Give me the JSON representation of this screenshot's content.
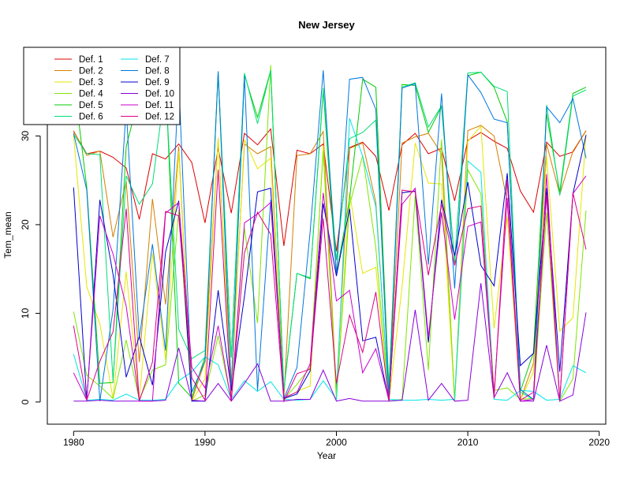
{
  "chart_data": {
    "type": "line",
    "title": "New Jersey",
    "xlabel": "Year",
    "ylabel": "Tem_mean",
    "xlim": [
      1978,
      2020.5
    ],
    "ylim": [
      -2.5,
      40
    ],
    "x_ticks": [
      1980,
      1990,
      2000,
      2010,
      2020
    ],
    "y_ticks": [
      0,
      10,
      20,
      30
    ],
    "grid": false,
    "legend_position": "top-left",
    "x": [
      1980,
      1981,
      1982,
      1983,
      1984,
      1985,
      1986,
      1987,
      1988,
      1989,
      1990,
      1991,
      1992,
      1993,
      1994,
      1995,
      1996,
      1997,
      1998,
      1999,
      2000,
      2001,
      2002,
      2003,
      2004,
      2005,
      2006,
      2007,
      2008,
      2009,
      2010,
      2011,
      2012,
      2013,
      2014,
      2015,
      2016,
      2017,
      2018,
      2019
    ],
    "series": [
      {
        "name": "Def. 1",
        "color": "#dd0000",
        "values": [
          30.5,
          28,
          28.3,
          27.6,
          26.4,
          20.6,
          28,
          27.4,
          29.1,
          27,
          20.2,
          28.6,
          21.3,
          30.3,
          29,
          30.8,
          17.6,
          28.4,
          28,
          29.1,
          17,
          28.7,
          29.3,
          27.7,
          21.6,
          29,
          30.3,
          28,
          28.6,
          22.7,
          29.5,
          30.4,
          29.4,
          28.6,
          23.8,
          21.4,
          29.3,
          27.7,
          28.2,
          30.6
        ]
      },
      {
        "name": "Def. 2",
        "color": "#d47f00",
        "values": [
          30.6,
          27.8,
          28.3,
          18.6,
          24.9,
          4.5,
          22.9,
          11,
          28.8,
          0.2,
          4.6,
          29.7,
          2.1,
          29.1,
          28,
          28.8,
          0.4,
          27.8,
          28,
          30.5,
          1.2,
          28.6,
          29.2,
          22.5,
          0.3,
          29.2,
          29.9,
          30.3,
          28,
          0.1,
          30.6,
          31.2,
          30,
          22.6,
          0.2,
          4.4,
          29.1,
          23.4,
          28.3,
          30.6
        ]
      },
      {
        "name": "Def. 3",
        "color": "#e6e600",
        "values": [
          30.1,
          13,
          8.8,
          0.4,
          14.7,
          0.3,
          16.8,
          4.8,
          28.3,
          0.1,
          2.6,
          29.8,
          0.8,
          29.6,
          26.3,
          27.5,
          0.3,
          1.2,
          1.8,
          28.9,
          0.4,
          23.6,
          14.5,
          15.2,
          0.1,
          13,
          29.2,
          24.7,
          24.6,
          0.1,
          29.4,
          31.1,
          8.3,
          20.9,
          0.2,
          3.4,
          27.7,
          8,
          9.5,
          30.2
        ]
      },
      {
        "name": "Def. 4",
        "color": "#7fe600",
        "values": [
          10.2,
          3,
          1.8,
          0.4,
          7,
          0.3,
          3.6,
          4.2,
          21.6,
          0.1,
          0.8,
          7.5,
          0.2,
          19.6,
          8.9,
          38,
          0.3,
          2,
          3.9,
          28.3,
          0.3,
          22.2,
          27.8,
          17.4,
          0.1,
          0.3,
          23.3,
          3.6,
          29.6,
          0.1,
          26.2,
          23.5,
          1.3,
          1.6,
          0.3,
          0.4,
          21.4,
          0.1,
          2.6,
          21.6
        ]
      },
      {
        "name": "Def. 5",
        "color": "#00cc00",
        "values": [
          36.5,
          24.2,
          2.1,
          2.2,
          28.8,
          34.6,
          35.3,
          36.5,
          2.1,
          0.5,
          5.1,
          37,
          5,
          36.9,
          32.1,
          37.4,
          1.3,
          14.5,
          13.9,
          35.1,
          14.3,
          22.9,
          36.4,
          35.5,
          1.5,
          35.8,
          35.7,
          30.4,
          33.3,
          15.7,
          36.8,
          37.2,
          35.5,
          31.6,
          1.2,
          5.6,
          32.5,
          23.7,
          34.8,
          35.5
        ]
      },
      {
        "name": "Def. 6",
        "color": "#00dd77",
        "values": [
          30.2,
          28,
          27.9,
          2.4,
          25.5,
          22.3,
          24.6,
          35.8,
          8.2,
          4.9,
          5.8,
          37.2,
          5.1,
          37.1,
          31.4,
          37.4,
          1.4,
          14.5,
          14,
          35.4,
          16,
          29.7,
          30.4,
          31.8,
          1.5,
          35.5,
          36,
          31,
          33.4,
          15.8,
          37.1,
          37.2,
          35.6,
          35,
          1.1,
          0.3,
          33.5,
          23.3,
          34.5,
          35.2
        ]
      },
      {
        "name": "Def. 7",
        "color": "#00e5e5",
        "values": [
          5.4,
          0.2,
          0.3,
          0.2,
          0.9,
          0.2,
          0.2,
          0.3,
          2.4,
          3.4,
          5.1,
          4.2,
          0.3,
          2.4,
          1.2,
          2.3,
          0.3,
          0.2,
          0.3,
          2.4,
          0.3,
          32,
          27.7,
          22,
          0.3,
          0.2,
          0.2,
          0.3,
          0.2,
          0.3,
          27.2,
          25.9,
          0.3,
          0.2,
          1.3,
          1.2,
          0.2,
          0.3,
          4.1,
          3.3
        ]
      },
      {
        "name": "Def. 8",
        "color": "#0077dd",
        "values": [
          30.3,
          23.9,
          0.1,
          10.4,
          33.1,
          7.2,
          17.8,
          5.8,
          36.3,
          1.1,
          4.6,
          37.3,
          1.3,
          36.8,
          1.3,
          22.8,
          0.4,
          3.9,
          19.2,
          37.4,
          14.4,
          36.4,
          36.6,
          33,
          0.3,
          35.4,
          35.9,
          15.5,
          34.8,
          12.8,
          36.9,
          34.9,
          31.9,
          31.5,
          1.4,
          0.3,
          33.3,
          31.5,
          34.2,
          27.5
        ]
      },
      {
        "name": "Def. 9",
        "color": "#0000cc",
        "values": [
          24.2,
          0.1,
          22.8,
          14.4,
          2.8,
          7.4,
          1.9,
          16.9,
          22.7,
          0.1,
          0.1,
          12.6,
          1.3,
          11.9,
          23.7,
          24.1,
          0.4,
          0.9,
          3.5,
          22.4,
          14.2,
          21.8,
          6.9,
          7.3,
          0.1,
          23.6,
          23.8,
          6.7,
          22.8,
          16.5,
          24.8,
          15.4,
          13.1,
          25.8,
          4.1,
          5.5,
          24.1,
          3.4,
          23.5,
          30.1
        ]
      },
      {
        "name": "Def. 10",
        "color": "#8800dd",
        "values": [
          0.1,
          0.1,
          0.2,
          0.1,
          0.1,
          0.1,
          0.1,
          0.2,
          6.1,
          0.2,
          0.1,
          2.1,
          0.1,
          2.1,
          4.3,
          0.1,
          0.1,
          0.3,
          0.3,
          3.6,
          0.1,
          0.4,
          0.1,
          0.1,
          0.1,
          0.2,
          10.4,
          0.2,
          2.1,
          0.1,
          0.2,
          13.4,
          0.5,
          3.3,
          0.1,
          0.1,
          6.4,
          0.1,
          0.8,
          10.1
        ]
      },
      {
        "name": "Def. 11",
        "color": "#cc00cc",
        "values": [
          3.3,
          0.2,
          21,
          16.7,
          10.8,
          0.1,
          0.1,
          21.3,
          22.5,
          3.9,
          1.6,
          8.6,
          0.1,
          20.2,
          21.2,
          22.5,
          0.5,
          1.1,
          4.3,
          23.6,
          11.4,
          12.6,
          3.3,
          6,
          0.2,
          22.3,
          24.1,
          7.3,
          21.4,
          9.3,
          19.8,
          20.3,
          0.9,
          23,
          0.1,
          0.3,
          25.7,
          0.1,
          23.5,
          25.5
        ]
      },
      {
        "name": "Def. 12",
        "color": "#dd0088",
        "values": [
          8.6,
          0.2,
          4.6,
          7.9,
          21.8,
          0.1,
          4.5,
          21.5,
          21,
          2.7,
          0.2,
          26.2,
          0.1,
          16.8,
          21.4,
          18.9,
          0.1,
          3.2,
          3.7,
          20.7,
          2.1,
          9.8,
          5.6,
          12.4,
          0.1,
          23.9,
          23.7,
          14.3,
          22.3,
          15.4,
          21.8,
          22.1,
          0.5,
          25.1,
          0.2,
          1.1,
          23.3,
          0.2,
          23.6,
          17.2
        ]
      }
    ]
  }
}
